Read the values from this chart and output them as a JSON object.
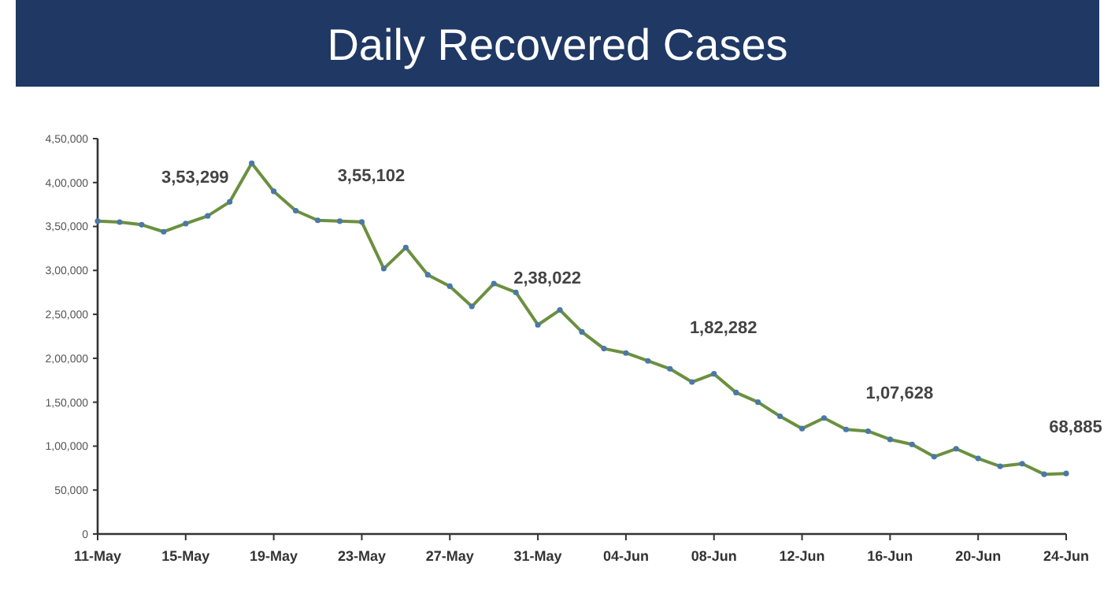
{
  "chart_data": {
    "type": "line",
    "title": "Daily Recovered Cases",
    "x": [
      "--05-11",
      "--05-12",
      "--05-13",
      "--05-14",
      "--05-15",
      "--05-16",
      "--05-17",
      "--05-18",
      "--05-19",
      "--05-20",
      "--05-21",
      "--05-22",
      "--05-23",
      "--05-24",
      "--05-25",
      "--05-26",
      "--05-27",
      "--05-28",
      "--05-29",
      "--05-30",
      "--05-31",
      "--06-01",
      "--06-02",
      "--06-03",
      "--06-04",
      "--06-05",
      "--06-06",
      "--06-07",
      "--06-08",
      "--06-09",
      "--06-10",
      "--06-11",
      "--06-12",
      "--06-13",
      "--06-14",
      "--06-15",
      "--06-16",
      "--06-17",
      "--06-18",
      "--06-19",
      "--06-20",
      "--06-21",
      "--06-22",
      "--06-23",
      "--06-24"
    ],
    "series": [
      {
        "color": "#6b9040",
        "values": [
          356000,
          355000,
          352000,
          344000,
          353299,
          362000,
          378000,
          422000,
          390000,
          368000,
          357000,
          356000,
          355102,
          302000,
          326000,
          295000,
          282000,
          259000,
          285000,
          275000,
          238022,
          255000,
          230000,
          211000,
          206000,
          197000,
          188000,
          173000,
          182282,
          161000,
          150000,
          134000,
          120000,
          132000,
          119000,
          117000,
          107628,
          102000,
          88000,
          97000,
          86000,
          77000,
          80000,
          68000,
          68885
        ]
      }
    ],
    "marker": "circle",
    "grid": false,
    "xlim": [
      "--05-11",
      "--06-24"
    ],
    "xticks": [
      {
        "value": "--05-11",
        "label": "11-May"
      },
      {
        "value": "--05-15",
        "label": "15-May"
      },
      {
        "value": "--05-19",
        "label": "19-May"
      },
      {
        "value": "--05-23",
        "label": "23-May"
      },
      {
        "value": "--05-27",
        "label": "27-May"
      },
      {
        "value": "--05-31",
        "label": "31-May"
      },
      {
        "value": "--06-04",
        "label": "04-Jun"
      },
      {
        "value": "--06-08",
        "label": "08-Jun"
      },
      {
        "value": "--06-12",
        "label": "12-Jun"
      },
      {
        "value": "--06-16",
        "label": "16-Jun"
      },
      {
        "value": "--06-20",
        "label": "20-Jun"
      },
      {
        "value": "--06-24",
        "label": "24-Jun"
      }
    ],
    "ylim": [
      0,
      450000
    ],
    "yticks": [
      0,
      {
        "value": 50000,
        "label": "50,000"
      },
      {
        "value": 100000,
        "label": "1,00,000"
      },
      {
        "value": 150000,
        "label": "1,50,000"
      },
      {
        "value": 200000,
        "label": "2,00,000"
      },
      {
        "value": 250000,
        "label": "2,50,000"
      },
      {
        "value": 300000,
        "label": "3,00,000"
      },
      {
        "value": 350000,
        "label": "3,50,000"
      },
      {
        "value": 400000,
        "label": "4,00,000"
      },
      {
        "value": 450000,
        "label": "4,50,000"
      }
    ],
    "annotations": [
      {
        "text": "3,53,299",
        "x": "--05-15",
        "y": 353299
      },
      {
        "text": "3,55,102",
        "x": "--05-23",
        "y": 355102
      },
      {
        "text": "2,38,022",
        "x": "--05-31",
        "y": 238022
      },
      {
        "text": "1,82,282",
        "x": "--06-08",
        "y": 182282
      },
      {
        "text": "1,07,628",
        "x": "--06-16",
        "y": 107628
      },
      {
        "text": "68,885",
        "x": "--06-24",
        "y": 68885
      }
    ]
  }
}
